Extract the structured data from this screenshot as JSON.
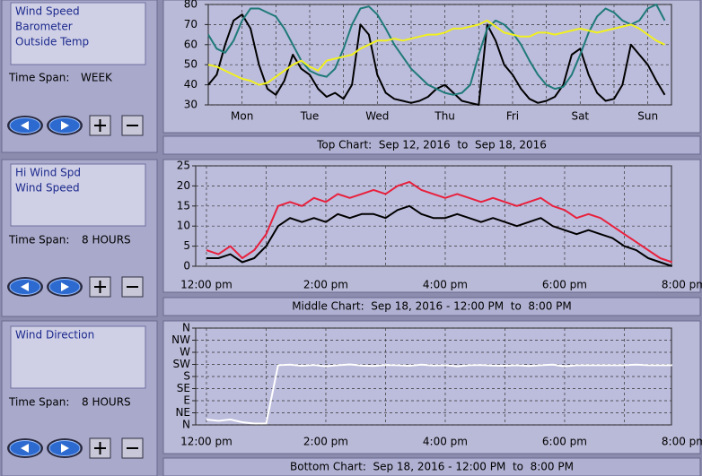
{
  "controls": [
    {
      "label": "Time Span:",
      "value": "WEEK"
    },
    {
      "label": "Time Span:",
      "value": "8 HOURS"
    },
    {
      "label": "Time Span:",
      "value": "8 HOURS"
    }
  ],
  "chart_data": [
    {
      "type": "line",
      "title": "Top Chart:  Sep 12, 2016  to  Sep 18, 2016",
      "x": [
        0,
        0.125,
        0.25,
        0.375,
        0.5,
        0.625,
        0.75,
        0.875,
        1,
        1.125,
        1.25,
        1.375,
        1.5,
        1.625,
        1.75,
        1.875,
        2,
        2.125,
        2.25,
        2.375,
        2.5,
        2.625,
        2.75,
        2.875,
        3,
        3.125,
        3.25,
        3.375,
        3.5,
        3.625,
        3.75,
        3.875,
        4,
        4.125,
        4.25,
        4.375,
        4.5,
        4.625,
        4.75,
        4.875,
        5,
        5.125,
        5.25,
        5.375,
        5.5,
        5.625,
        5.75,
        5.875,
        6,
        6.125,
        6.25,
        6.375,
        6.5,
        6.625,
        6.75
      ],
      "xlim": [
        0,
        6.85
      ],
      "xticks": [
        {
          "value": 0.5,
          "label": "Mon"
        },
        {
          "value": 1.5,
          "label": "Tue"
        },
        {
          "value": 2.5,
          "label": "Wed"
        },
        {
          "value": 3.5,
          "label": "Thu"
        },
        {
          "value": 4.5,
          "label": "Fri"
        },
        {
          "value": 5.5,
          "label": "Sat"
        },
        {
          "value": 6.5,
          "label": "Sun"
        }
      ],
      "minor_xticks": [
        1,
        2,
        3,
        4,
        5,
        6
      ],
      "ylim": [
        30,
        80
      ],
      "yticks": [
        30,
        40,
        50,
        60,
        70,
        80
      ],
      "grid": true,
      "series": [
        {
          "name": "Wind Speed",
          "color": "#000000",
          "values": [
            40,
            45,
            60,
            72,
            75,
            68,
            50,
            38,
            35,
            42,
            55,
            48,
            45,
            38,
            34,
            36,
            33,
            40,
            70,
            65,
            45,
            36,
            33,
            32,
            31,
            32,
            34,
            38,
            40,
            36,
            32,
            31,
            30,
            70,
            62,
            50,
            45,
            38,
            33,
            31,
            32,
            34,
            40,
            55,
            58,
            45,
            36,
            32,
            33,
            40,
            60,
            55,
            50,
            42,
            35
          ]
        },
        {
          "name": "Barometer",
          "color": "#1f7a78",
          "values": [
            65,
            58,
            56,
            62,
            72,
            78,
            78,
            76,
            74,
            68,
            60,
            52,
            47,
            45,
            44,
            48,
            58,
            70,
            78,
            79,
            75,
            68,
            60,
            54,
            48,
            44,
            40,
            38,
            36,
            35,
            36,
            40,
            55,
            68,
            72,
            70,
            66,
            60,
            52,
            45,
            40,
            38,
            39,
            45,
            55,
            66,
            74,
            78,
            76,
            72,
            70,
            72,
            78,
            80,
            72
          ]
        },
        {
          "name": "Outside Temp",
          "color": "#f0f020",
          "values": [
            50,
            49,
            47,
            45,
            43,
            42,
            40,
            41,
            44,
            47,
            50,
            52,
            49,
            47,
            52,
            53,
            54,
            55,
            58,
            60,
            62,
            62,
            63,
            62,
            63,
            64,
            65,
            65,
            66,
            68,
            68,
            69,
            70,
            72,
            69,
            66,
            65,
            64,
            64,
            66,
            66,
            65,
            66,
            67,
            68,
            67,
            66,
            67,
            68,
            69,
            70,
            68,
            65,
            62,
            60
          ]
        }
      ]
    },
    {
      "type": "line",
      "title": "Middle Chart:  Sep 18, 2016 - 12:00 PM  to  8:00 PM",
      "x": [
        0,
        0.2,
        0.4,
        0.6,
        0.8,
        1,
        1.2,
        1.4,
        1.6,
        1.8,
        2,
        2.2,
        2.4,
        2.6,
        2.8,
        3,
        3.2,
        3.4,
        3.6,
        3.8,
        4,
        4.2,
        4.4,
        4.6,
        4.8,
        5,
        5.2,
        5.4,
        5.6,
        5.8,
        6,
        6.2,
        6.4,
        6.6,
        6.8,
        7,
        7.2,
        7.4,
        7.6,
        7.8
      ],
      "xlim": [
        -0.18,
        7.79
      ],
      "xticks": [
        {
          "value": 0,
          "label": "12:00 pm"
        },
        {
          "value": 2,
          "label": "2:00 pm"
        },
        {
          "value": 4,
          "label": "4:00 pm"
        },
        {
          "value": 6,
          "label": "6:00 pm"
        },
        {
          "value": 8,
          "label": "8:00 pm"
        }
      ],
      "minor_xticks": [
        1,
        3,
        5,
        7
      ],
      "ylim": [
        0,
        25
      ],
      "yticks": [
        0,
        5,
        10,
        15,
        20,
        25
      ],
      "grid": true,
      "series": [
        {
          "name": "Hi Wind Spd",
          "color": "#e8203c",
          "values": [
            4,
            3,
            5,
            2,
            4,
            8,
            15,
            16,
            15,
            17,
            16,
            18,
            17,
            18,
            19,
            18,
            20,
            21,
            19,
            18,
            17,
            18,
            17,
            16,
            17,
            16,
            15,
            16,
            17,
            15,
            14,
            12,
            13,
            12,
            10,
            8,
            6,
            4,
            2,
            1
          ]
        },
        {
          "name": "Wind Speed",
          "color": "#000000",
          "values": [
            2,
            2,
            3,
            1,
            2,
            5,
            10,
            12,
            11,
            12,
            11,
            13,
            12,
            13,
            13,
            12,
            14,
            15,
            13,
            12,
            12,
            13,
            12,
            11,
            12,
            11,
            10,
            11,
            12,
            10,
            9,
            8,
            9,
            8,
            7,
            5,
            4,
            2,
            1,
            0
          ]
        }
      ]
    },
    {
      "type": "line",
      "title": "Bottom Chart:  Sep 18, 2016 - 12:00 PM  to  8:00 PM",
      "x": [
        0,
        0.2,
        0.4,
        0.6,
        0.8,
        1,
        1.2,
        1.4,
        1.6,
        1.8,
        2,
        2.2,
        2.4,
        2.6,
        2.8,
        3,
        3.2,
        3.4,
        3.6,
        3.8,
        4,
        4.2,
        4.4,
        4.6,
        4.8,
        5,
        5.2,
        5.4,
        5.6,
        5.8,
        6,
        6.2,
        6.4,
        6.6,
        6.8,
        7,
        7.2,
        7.4,
        7.6,
        7.8
      ],
      "xlim": [
        -0.18,
        7.79
      ],
      "xticks": [
        {
          "value": 0,
          "label": "12:00 pm"
        },
        {
          "value": 2,
          "label": "2:00 pm"
        },
        {
          "value": 4,
          "label": "4:00 pm"
        },
        {
          "value": 6,
          "label": "6:00 pm"
        },
        {
          "value": 8,
          "label": "8:00 pm"
        }
      ],
      "minor_xticks": [
        1,
        3,
        5,
        7
      ],
      "ylim": [
        0,
        360
      ],
      "yticks": [
        {
          "value": 0,
          "label": "N"
        },
        {
          "value": 45,
          "label": "NE"
        },
        {
          "value": 90,
          "label": "E"
        },
        {
          "value": 135,
          "label": "SE"
        },
        {
          "value": 180,
          "label": "S"
        },
        {
          "value": 225,
          "label": "SW"
        },
        {
          "value": 270,
          "label": "W"
        },
        {
          "value": 315,
          "label": "NW"
        },
        {
          "value": 360,
          "label": "N"
        }
      ],
      "grid": true,
      "series": [
        {
          "name": "Wind Direction",
          "color": "#ffffff",
          "values": [
            20,
            15,
            20,
            10,
            5,
            5,
            222,
            224,
            220,
            223,
            218,
            222,
            225,
            221,
            219,
            223,
            222,
            220,
            224,
            221,
            222,
            218,
            222,
            223,
            221,
            220,
            222,
            219,
            222,
            224,
            218,
            222,
            222,
            222,
            222,
            222,
            224,
            222,
            222,
            222
          ]
        }
      ]
    }
  ]
}
